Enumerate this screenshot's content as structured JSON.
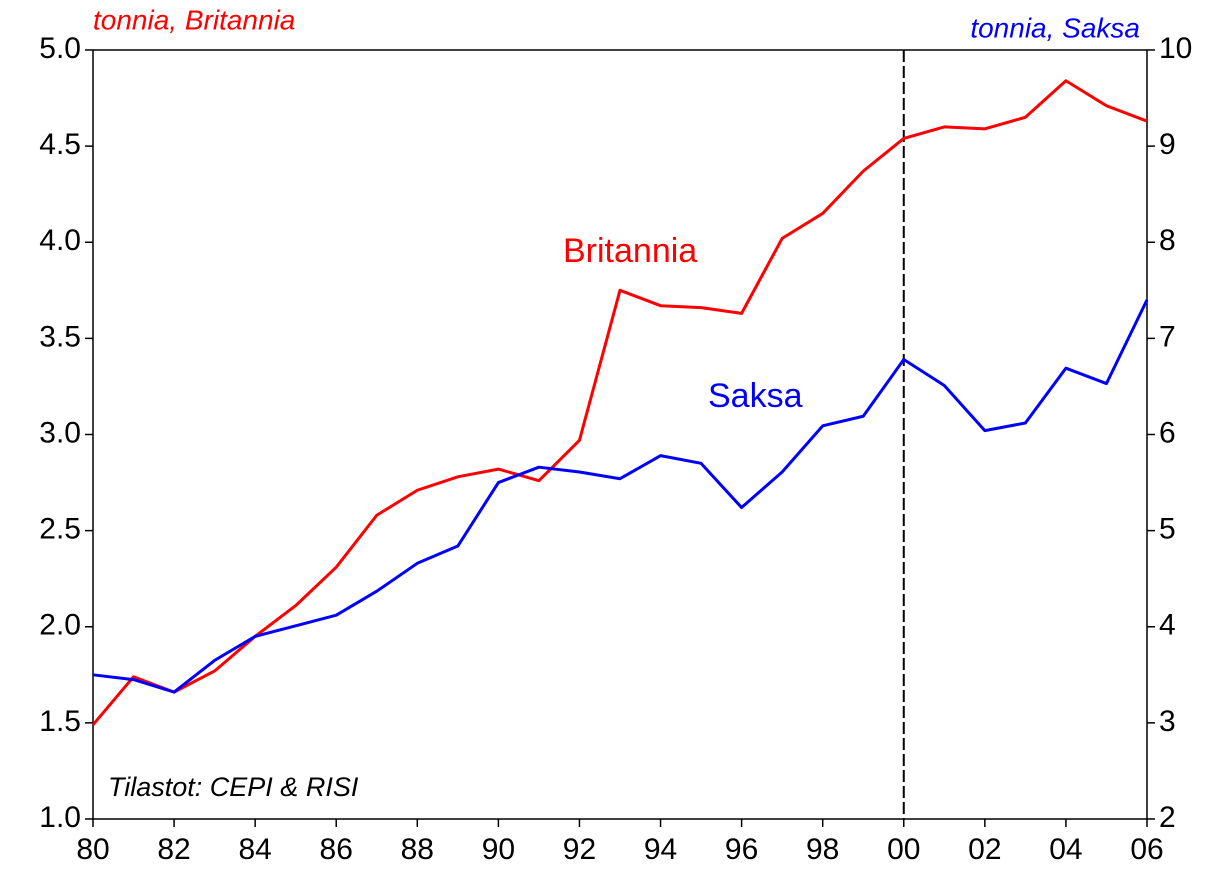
{
  "chart_data": {
    "type": "line",
    "y_label": "tonnia, Britannia",
    "y2_label": "tonnia, Saksa",
    "note": "Tilastot: CEPI & RISI",
    "x": [
      1980,
      1981,
      1982,
      1983,
      1984,
      1985,
      1986,
      1987,
      1988,
      1989,
      1990,
      1991,
      1992,
      1993,
      1994,
      1995,
      1996,
      1997,
      1998,
      1999,
      2000,
      2001,
      2002,
      2003,
      2004,
      2005,
      2006
    ],
    "series": [
      {
        "name": "Britannia",
        "color": "#ff0000",
        "values": [
          1.49,
          1.74,
          1.66,
          1.77,
          1.95,
          2.11,
          2.31,
          2.58,
          2.71,
          2.78,
          2.82,
          2.76,
          2.97,
          3.75,
          3.67,
          3.66,
          3.63,
          4.02,
          4.15,
          4.37,
          4.54,
          4.6,
          4.59,
          4.65,
          4.84,
          4.71,
          4.63
        ]
      },
      {
        "name": "Saksa",
        "color": "#0000ff",
        "axis": "y2",
        "values": [
          3.5,
          3.45,
          3.32,
          3.65,
          3.9,
          4.01,
          4.12,
          4.37,
          4.66,
          4.84,
          5.5,
          5.66,
          5.61,
          5.54,
          5.78,
          5.7,
          5.24,
          5.61,
          6.09,
          6.19,
          6.78,
          6.51,
          6.04,
          6.12,
          6.69,
          6.53,
          7.4
        ]
      }
    ],
    "xlim": [
      1980,
      2006
    ],
    "xticks": [
      {
        "value": 1980,
        "label": "80"
      },
      {
        "value": 1982,
        "label": "82"
      },
      {
        "value": 1984,
        "label": "84"
      },
      {
        "value": 1986,
        "label": "86"
      },
      {
        "value": 1988,
        "label": "88"
      },
      {
        "value": 1990,
        "label": "90"
      },
      {
        "value": 1992,
        "label": "92"
      },
      {
        "value": 1994,
        "label": "94"
      },
      {
        "value": 1996,
        "label": "96"
      },
      {
        "value": 1998,
        "label": "98"
      },
      {
        "value": 2000,
        "label": "00"
      },
      {
        "value": 2002,
        "label": "02"
      },
      {
        "value": 2004,
        "label": "04"
      },
      {
        "value": 2006,
        "label": "06"
      }
    ],
    "ylim": [
      1,
      5
    ],
    "yticks": [
      {
        "value": 1,
        "label": "1.0"
      },
      {
        "value": 1.5,
        "label": "1.5"
      },
      {
        "value": 2,
        "label": "2.0"
      },
      {
        "value": 2.5,
        "label": "2.5"
      },
      {
        "value": 3,
        "label": "3.0"
      },
      {
        "value": 3.5,
        "label": "3.5"
      },
      {
        "value": 4,
        "label": "4.0"
      },
      {
        "value": 4.5,
        "label": "4.5"
      },
      {
        "value": 5,
        "label": "5.0"
      }
    ],
    "y2lim": [
      2,
      10
    ],
    "y2ticks": [
      2,
      3,
      4,
      5,
      6,
      7,
      8,
      9,
      10
    ],
    "vline": 2000
  }
}
